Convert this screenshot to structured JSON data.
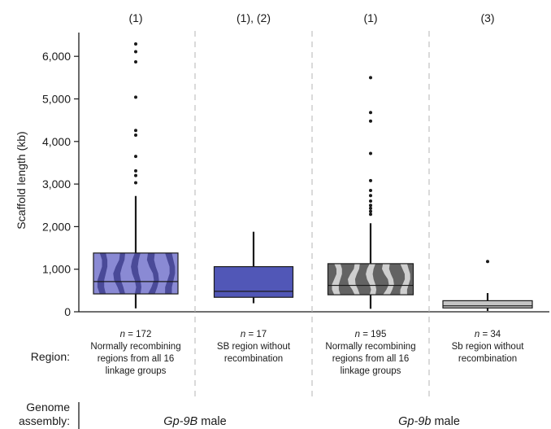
{
  "chart_data": {
    "type": "box",
    "ylabel": "Scaffold length (kb)",
    "ylim": [
      0,
      6500
    ],
    "yticks": [
      0,
      1000,
      2000,
      3000,
      4000,
      5000,
      6000
    ],
    "ytick_labels": [
      "0",
      "1,000",
      "2,000",
      "3,000",
      "4,000",
      "5,000",
      "6,000"
    ],
    "region_label": "Region:",
    "assembly_label_line1": "Genome",
    "assembly_label_line2": "assembly:",
    "groups": [
      {
        "top": "(1)",
        "n_value": "172",
        "desc": [
          "Normally recombining",
          "regions from all 16",
          "linkage groups"
        ],
        "color": "#8a8ad4",
        "stripe": "#4a4a98",
        "whisker_low": 80,
        "q1": 420,
        "median": 710,
        "q3": 1380,
        "whisker_high": 2720,
        "outliers": [
          3030,
          3200,
          3310,
          3650,
          4150,
          4260,
          5040,
          5870,
          6110,
          6290
        ]
      },
      {
        "top": "(1), (2)",
        "n_value": "17",
        "desc": [
          "SB region without",
          "recombination"
        ],
        "color": "#5157b7",
        "stripe": null,
        "whisker_low": 200,
        "q1": 340,
        "median": 480,
        "q3": 1060,
        "whisker_high": 1880,
        "outliers": []
      },
      {
        "top": "(1)",
        "n_value": "195",
        "desc": [
          "Normally recombining",
          "regions from all 16",
          "linkage groups"
        ],
        "color": "#636363",
        "stripe": "#cfcfcf",
        "whisker_low": 70,
        "q1": 400,
        "median": 620,
        "q3": 1130,
        "whisker_high": 2080,
        "outliers": [
          2290,
          2360,
          2430,
          2500,
          2600,
          2730,
          2850,
          3080,
          3720,
          4480,
          4680,
          5500
        ]
      },
      {
        "top": "(3)",
        "n_value": "34",
        "desc": [
          "Sb region without",
          "recombination"
        ],
        "color": "#c4c4c4",
        "stripe": null,
        "whisker_low": 20,
        "q1": 90,
        "median": 140,
        "q3": 260,
        "whisker_high": 440,
        "outliers": [
          1180
        ]
      }
    ],
    "assemblies": [
      {
        "name": "Gp-9B",
        "suffix": " male"
      },
      {
        "name": "Gp-9b",
        "suffix": " male"
      }
    ],
    "grid": false
  }
}
